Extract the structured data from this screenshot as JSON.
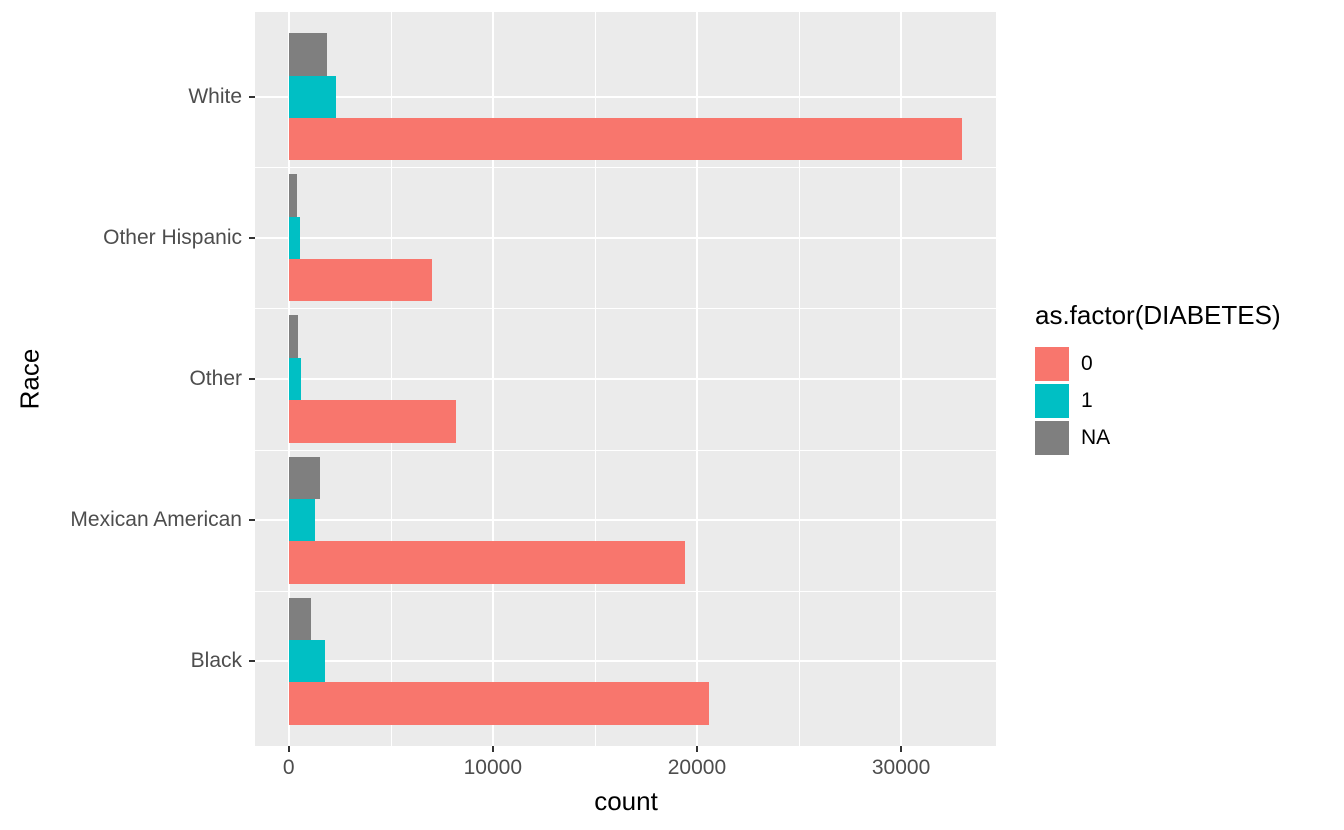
{
  "chart_data": {
    "type": "bar",
    "orientation": "horizontal",
    "title": "",
    "xlabel": "count",
    "ylabel": "Race",
    "categories": [
      "White",
      "Other Hispanic",
      "Other",
      "Mexican American",
      "Black"
    ],
    "series": [
      {
        "name": "NA",
        "color": "#7f7f7f",
        "values": [
          1900,
          400,
          450,
          1550,
          1100
        ]
      },
      {
        "name": "1",
        "color": "#00bfc4",
        "values": [
          2300,
          550,
          600,
          1300,
          1800
        ]
      },
      {
        "name": "0",
        "color": "#f8766d",
        "values": [
          33000,
          7000,
          8200,
          19400,
          20600
        ]
      }
    ],
    "xlim": [
      -1650,
      34650
    ],
    "x_ticks": [
      {
        "value": 0,
        "label": "0"
      },
      {
        "value": 10000,
        "label": "10000"
      },
      {
        "value": 20000,
        "label": "20000"
      },
      {
        "value": 30000,
        "label": "30000"
      }
    ],
    "x_minor_ticks": [
      5000,
      15000,
      25000
    ],
    "legend": {
      "title": "as.factor(DIABETES)",
      "position": "right",
      "entries": [
        {
          "label": "0",
          "color": "#f8766d"
        },
        {
          "label": "1",
          "color": "#00bfc4"
        },
        {
          "label": "NA",
          "color": "#7f7f7f"
        }
      ]
    },
    "panel_background": "#ebebeb",
    "grid_color": "#ffffff",
    "grid": true
  }
}
